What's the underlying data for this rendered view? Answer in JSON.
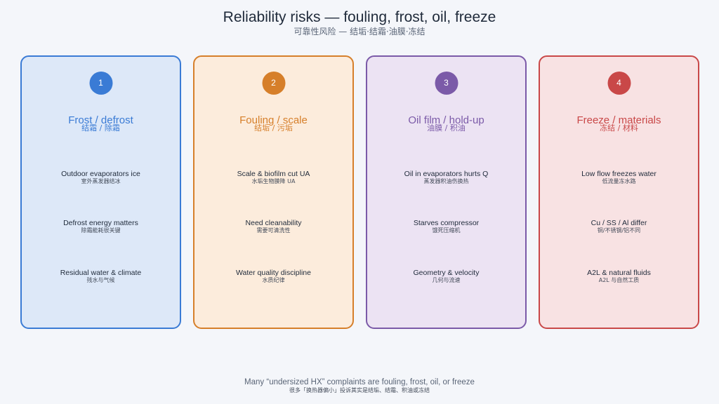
{
  "title": "Reliability risks — fouling, frost, oil, freeze",
  "subtitle": "可靠性风险 — 结垢·结霜·油膜·冻结",
  "cards": [
    {
      "number": "1",
      "heading_en": "Frost / defrost",
      "heading_zh": "结霜 / 除霜",
      "accent": "#3a7bd5",
      "fill": "#dde8f8",
      "items": [
        {
          "en": "Outdoor evaporators ice",
          "zh": "室外蒸发器结冰"
        },
        {
          "en": "Defrost energy matters",
          "zh": "除霜能耗很关键"
        },
        {
          "en": "Residual water & climate",
          "zh": "残水与气候"
        }
      ]
    },
    {
      "number": "2",
      "heading_en": "Fouling / scale",
      "heading_zh": "结垢 / 污垢",
      "accent": "#d67f2a",
      "fill": "#fcecdc",
      "items": [
        {
          "en": "Scale & biofilm cut UA",
          "zh": "水垢生物膜降 UA"
        },
        {
          "en": "Need cleanability",
          "zh": "需要可清洗性"
        },
        {
          "en": "Water quality discipline",
          "zh": "水质纪律"
        }
      ]
    },
    {
      "number": "3",
      "heading_en": "Oil film / hold-up",
      "heading_zh": "油膜 / 积油",
      "accent": "#7b5aa8",
      "fill": "#ece3f3",
      "items": [
        {
          "en": "Oil in evaporators hurts Q",
          "zh": "蒸发器积油伤换热"
        },
        {
          "en": "Starves compressor",
          "zh": "饿死压缩机"
        },
        {
          "en": "Geometry & velocity",
          "zh": "几何与流速"
        }
      ]
    },
    {
      "number": "4",
      "heading_en": "Freeze / materials",
      "heading_zh": "冻结 / 材料",
      "accent": "#c94848",
      "fill": "#f8e2e3",
      "items": [
        {
          "en": "Low flow freezes water",
          "zh": "低流量冻水路"
        },
        {
          "en": "Cu / SS / Al differ",
          "zh": "铜/不锈钢/铝不同"
        },
        {
          "en": "A2L & natural fluids",
          "zh": "A2L 与自然工质"
        }
      ]
    }
  ],
  "footer": {
    "en": "Many “undersized HX” complaints are fouling, frost, oil, or freeze",
    "zh": "很多「换热器偏小」投诉其实是结垢、结霜、积油或冻结"
  }
}
